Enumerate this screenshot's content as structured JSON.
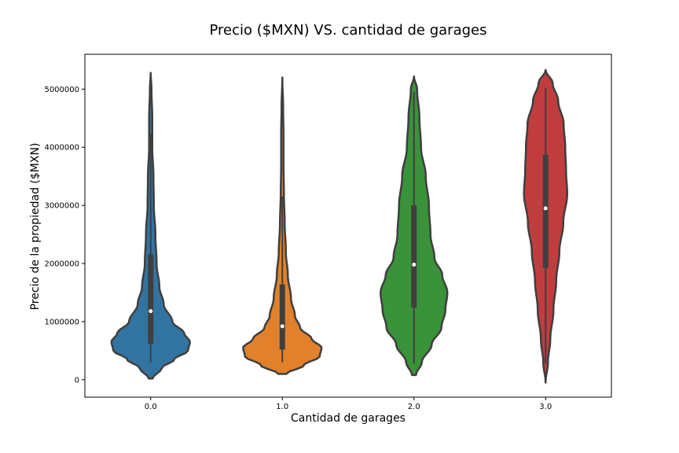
{
  "chart_data": {
    "type": "violin",
    "title": "Precio ($MXN) VS. cantidad de garages",
    "xlabel": "Cantidad de garages",
    "ylabel": "Precio de la propiedad ($MXN)",
    "categories": [
      "0.0",
      "1.0",
      "2.0",
      "3.0"
    ],
    "yticks": [
      0,
      1000000,
      2000000,
      3000000,
      4000000,
      5000000
    ],
    "ytick_labels": [
      "0",
      "1000000",
      "2000000",
      "3000000",
      "4000000",
      "5000000"
    ],
    "ylim": [
      -300000,
      5600000
    ],
    "grid": false,
    "colors": [
      "#3274a1",
      "#e1812c",
      "#3a923a",
      "#c03d3e"
    ],
    "outline_color": "#3f3f3f",
    "series": [
      {
        "category": "0.0",
        "min": 20000,
        "max": 5280000,
        "whisker_low": 300000,
        "whisker_high": 4230000,
        "q1": 620000,
        "median": 1180000,
        "q3": 2160000,
        "density_profile": [
          [
            20000,
            0.05
          ],
          [
            200000,
            0.28
          ],
          [
            350000,
            0.6
          ],
          [
            500000,
            0.95
          ],
          [
            650000,
            1.0
          ],
          [
            800000,
            0.85
          ],
          [
            1000000,
            0.55
          ],
          [
            1300000,
            0.33
          ],
          [
            1600000,
            0.22
          ],
          [
            2000000,
            0.15
          ],
          [
            2500000,
            0.12
          ],
          [
            3000000,
            0.08
          ],
          [
            3500000,
            0.07
          ],
          [
            4000000,
            0.04
          ],
          [
            4500000,
            0.04
          ],
          [
            5000000,
            0.02
          ],
          [
            5280000,
            0.0
          ]
        ]
      },
      {
        "category": "1.0",
        "min": 100000,
        "max": 5200000,
        "whisker_low": 300000,
        "whisker_high": 3150000,
        "q1": 520000,
        "median": 920000,
        "q3": 1640000,
        "density_profile": [
          [
            100000,
            0.1
          ],
          [
            250000,
            0.55
          ],
          [
            400000,
            0.95
          ],
          [
            550000,
            1.0
          ],
          [
            700000,
            0.75
          ],
          [
            900000,
            0.45
          ],
          [
            1100000,
            0.32
          ],
          [
            1400000,
            0.22
          ],
          [
            1800000,
            0.14
          ],
          [
            2200000,
            0.09
          ],
          [
            2700000,
            0.06
          ],
          [
            3200000,
            0.04
          ],
          [
            3700000,
            0.03
          ],
          [
            4200000,
            0.03
          ],
          [
            4700000,
            0.02
          ],
          [
            5200000,
            0.0
          ]
        ]
      },
      {
        "category": "2.0",
        "min": 80000,
        "max": 5220000,
        "whisker_low": 280000,
        "whisker_high": 4950000,
        "q1": 1240000,
        "median": 1980000,
        "q3": 3000000,
        "density_profile": [
          [
            80000,
            0.05
          ],
          [
            300000,
            0.2
          ],
          [
            600000,
            0.45
          ],
          [
            900000,
            0.7
          ],
          [
            1200000,
            0.8
          ],
          [
            1500000,
            0.85
          ],
          [
            1800000,
            0.72
          ],
          [
            2100000,
            0.52
          ],
          [
            2500000,
            0.42
          ],
          [
            3000000,
            0.38
          ],
          [
            3500000,
            0.3
          ],
          [
            4000000,
            0.18
          ],
          [
            4500000,
            0.14
          ],
          [
            5000000,
            0.08
          ],
          [
            5220000,
            0.0
          ]
        ]
      },
      {
        "category": "3.0",
        "min": -50000,
        "max": 5330000,
        "whisker_low": 280000,
        "whisker_high": 5020000,
        "q1": 1920000,
        "median": 2950000,
        "q3": 3870000,
        "density_profile": [
          [
            -50000,
            0.0
          ],
          [
            300000,
            0.06
          ],
          [
            700000,
            0.12
          ],
          [
            1200000,
            0.2
          ],
          [
            1700000,
            0.27
          ],
          [
            2200000,
            0.35
          ],
          [
            2700000,
            0.45
          ],
          [
            3200000,
            0.55
          ],
          [
            3600000,
            0.52
          ],
          [
            4000000,
            0.5
          ],
          [
            4400000,
            0.46
          ],
          [
            4800000,
            0.32
          ],
          [
            5100000,
            0.18
          ],
          [
            5330000,
            0.0
          ]
        ]
      }
    ]
  }
}
